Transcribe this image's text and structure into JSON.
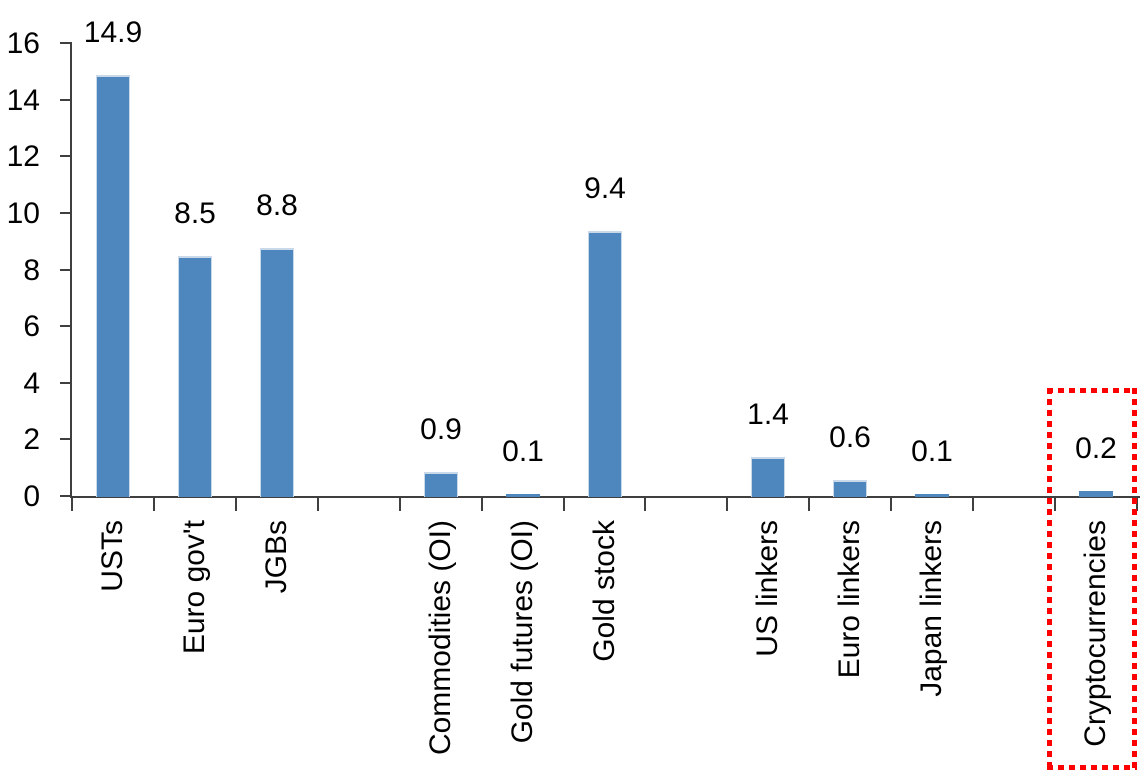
{
  "chart_data": {
    "type": "bar",
    "title": "",
    "xlabel": "",
    "ylabel": "",
    "categories": [
      "USTs",
      "Euro gov't",
      "JGBs",
      "Commodities (OI)",
      "Gold futures (OI)",
      "Gold stock",
      "US linkers",
      "Euro linkers",
      "Japan linkers",
      "Cryptocurrencies"
    ],
    "values": [
      14.9,
      8.5,
      8.8,
      0.9,
      0.1,
      9.4,
      1.4,
      0.6,
      0.1,
      0.2
    ],
    "value_labels": [
      "14.9",
      "8.5",
      "8.8",
      "0.9",
      "0.1",
      "9.4",
      "1.4",
      "0.6",
      "0.1",
      "0.2"
    ],
    "groups": [
      [
        "USTs",
        "Euro gov't",
        "JGBs"
      ],
      [
        "Commodities (OI)",
        "Gold futures (OI)",
        "Gold stock"
      ],
      [
        "US linkers",
        "Euro linkers",
        "Japan linkers"
      ],
      [
        "Cryptocurrencies"
      ]
    ],
    "slots": [
      0,
      1,
      2,
      4,
      5,
      6,
      8,
      9,
      10,
      12
    ],
    "num_slots": 13,
    "ylim": [
      0,
      16
    ],
    "yticks": [
      0,
      2,
      4,
      6,
      8,
      10,
      12,
      14,
      16
    ],
    "grid": false,
    "legend": false,
    "x_label_rotation_deg": 90,
    "bar_color": "#4E86BE",
    "bar_edge_color": "#C9D9EA",
    "axis_color": "#3F3F3F",
    "text_color": "#000000",
    "highlight": {
      "category": "Cryptocurrencies",
      "style": "red-dotted-box",
      "color": "#FF0000"
    }
  }
}
